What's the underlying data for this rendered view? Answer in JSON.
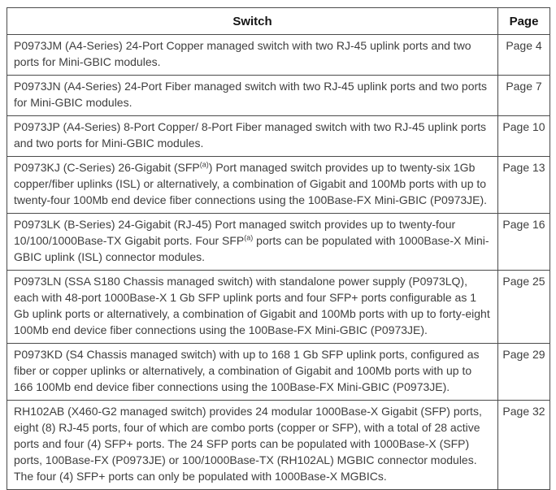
{
  "colors": {
    "border": "#4b4b4b",
    "text": "#3e3e3e",
    "header_text": "#141414",
    "background": "#ffffff"
  },
  "table": {
    "header": {
      "switch": "Switch",
      "page": "Page"
    },
    "rows": [
      {
        "desc_pre": "P0973JM (A4-Series) 24-Port Copper managed switch with two RJ-45 uplink ports and two ports for Mini-GBIC modules.",
        "sup": "",
        "desc_post": "",
        "page": "Page 4"
      },
      {
        "desc_pre": "P0973JN (A4-Series) 24-Port Fiber managed switch with two RJ-45 uplink ports and two ports for Mini-GBIC modules.",
        "sup": "",
        "desc_post": "",
        "page": "Page 7"
      },
      {
        "desc_pre": "P0973JP (A4-Series) 8-Port Copper/ 8-Port Fiber managed switch with two RJ-45 uplink ports and two ports for Mini-GBIC modules.",
        "sup": "",
        "desc_post": "",
        "page": "Page 10"
      },
      {
        "desc_pre": "P0973KJ (C-Series) 26-Gigabit (SFP",
        "sup": "(a)",
        "desc_post": ") Port managed switch provides up to twenty-six 1Gb copper/fiber uplinks (ISL) or alternatively, a combination of Gigabit and 100Mb ports with up to twenty-four 100Mb end device fiber connections using the 100Base-FX Mini-GBIC (P0973JE).",
        "page": "Page 13"
      },
      {
        "desc_pre": "P0973LK (B-Series) 24-Gigabit (RJ-45) Port managed switch provides up to twenty-four 10/100/1000Base-TX Gigabit ports. Four SFP",
        "sup": "(a)",
        "desc_post": " ports can be populated with 1000Base-X Mini-GBIC uplink (ISL) connector modules.",
        "page": "Page 16"
      },
      {
        "desc_pre": "P0973LN (SSA S180 Chassis managed switch) with standalone power supply (P0973LQ), each with 48-port 1000Base-X 1 Gb SFP uplink ports and four SFP+ ports configurable as 1 Gb uplink ports or alternatively, a combination of Gigabit and 100Mb ports with up to forty-eight 100Mb end device fiber connections using the 100Base-FX Mini-GBIC (P0973JE).",
        "sup": "",
        "desc_post": "",
        "page": "Page 25"
      },
      {
        "desc_pre": "P0973KD (S4 Chassis managed switch) with up to 168 1 Gb SFP uplink ports, configured as fiber or copper uplinks or alternatively, a combination of Gigabit and 100Mb ports with up to 166 100Mb end device fiber connections using the 100Base-FX Mini-GBIC (P0973JE).",
        "sup": "",
        "desc_post": "",
        "page": "Page 29"
      },
      {
        "desc_pre": "RH102AB (X460-G2 managed switch) provides 24 modular 1000Base-X Gigabit (SFP) ports, eight (8) RJ-45 ports, four of which are combo ports (copper or SFP), with a total of 28 active ports and four (4) SFP+ ports. The 24 SFP ports can be populated with 1000Base-X (SFP) ports, 100Base-FX (P0973JE) or 100/1000Base-TX (RH102AL) MGBIC connector modules. The four (4) SFP+ ports can only be populated with 1000Base-X MGBICs.",
        "sup": "",
        "desc_post": "",
        "page": "Page 32"
      }
    ]
  }
}
